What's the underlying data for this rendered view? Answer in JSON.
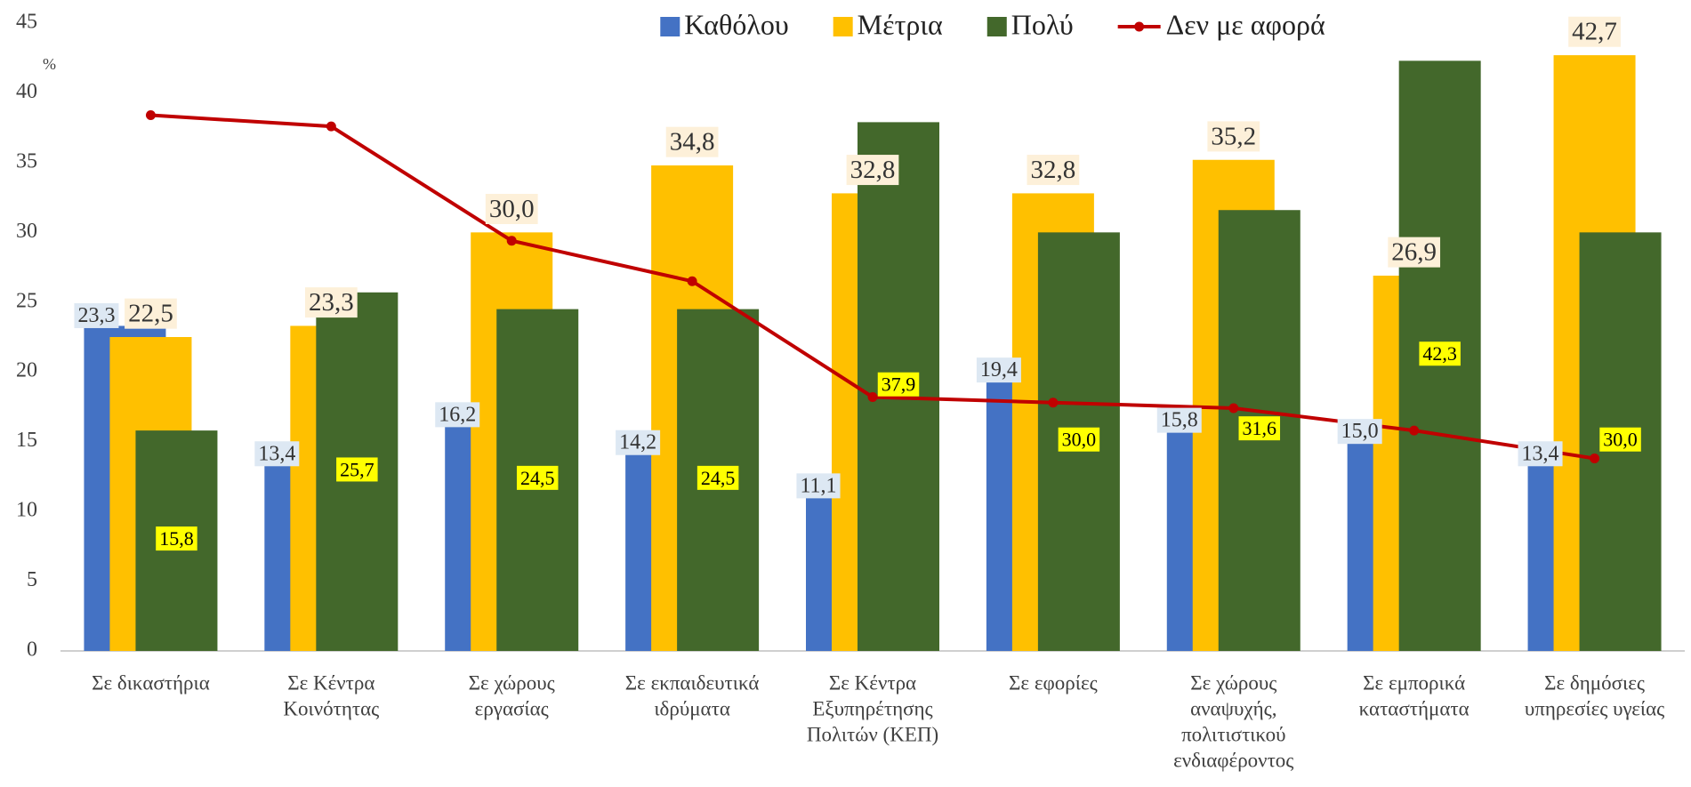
{
  "chart_data": {
    "type": "bar",
    "y_label": "%",
    "categories": [
      [
        "Σε δικαστήρια"
      ],
      [
        "Σε Κέντρα",
        "Κοινότητας"
      ],
      [
        "Σε χώρους",
        "εργασίας"
      ],
      [
        "Σε εκπαιδευτικά",
        "ιδρύματα"
      ],
      [
        "Σε Κέντρα",
        "Εξυπηρέτησης",
        "Πολιτών  (ΚΕΠ)"
      ],
      [
        "Σε εφορίες"
      ],
      [
        "Σε χώρους",
        "αναψυχής,",
        "πολιτιστικού",
        "ενδιαφέροντος"
      ],
      [
        "Σε εμπορικά",
        "καταστήματα"
      ],
      [
        "Σε δημόσιες",
        "υπηρεσίες υγείας"
      ]
    ],
    "series": [
      {
        "name": "Καθόλου",
        "type": "bar",
        "color": "#4472c4",
        "values": [
          23.3,
          13.4,
          16.2,
          14.2,
          11.1,
          19.4,
          15.8,
          15.0,
          13.4
        ],
        "value_labels": [
          "23,3",
          "13,4",
          "16,2",
          "14,2",
          "11,1",
          "19,4",
          "15,8",
          "15,0",
          "13,4"
        ]
      },
      {
        "name": "Μέτρια",
        "type": "bar",
        "color": "#ffc000",
        "values": [
          22.5,
          23.3,
          30.0,
          34.8,
          32.8,
          32.8,
          35.2,
          26.9,
          42.7
        ],
        "value_labels": [
          "22,5",
          "23,3",
          "30,0",
          "34,8",
          "32,8",
          "32,8",
          "35,2",
          "26,9",
          "42,7"
        ]
      },
      {
        "name": "Πολύ",
        "type": "bar",
        "color": "#43682b",
        "values": [
          15.8,
          25.7,
          24.5,
          24.5,
          37.9,
          30.0,
          31.6,
          42.3,
          30.0
        ],
        "value_labels": [
          "15,8",
          "25,7",
          "24,5",
          "24,5",
          "37,9",
          "30,0",
          "31,6",
          "42,3",
          "30,0"
        ]
      },
      {
        "name": "Δεν με αφορά",
        "type": "line",
        "color": "#c00000",
        "values": [
          38.4,
          37.6,
          29.4,
          26.5,
          18.2,
          17.8,
          17.4,
          15.8,
          13.8
        ]
      }
    ],
    "ylim": [
      0,
      45
    ],
    "yticks": [
      0,
      5,
      10,
      15,
      20,
      25,
      30,
      35,
      40,
      45
    ],
    "grid": false,
    "legend": "top"
  }
}
